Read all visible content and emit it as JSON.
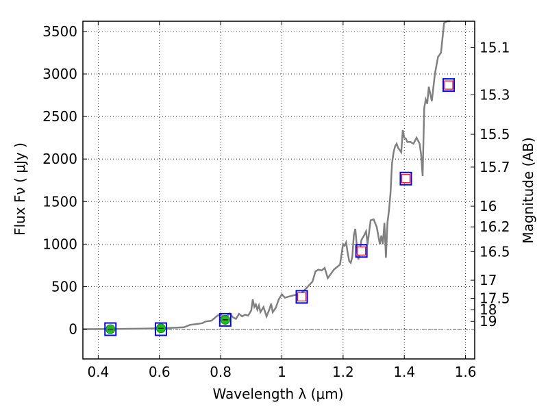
{
  "chart_data": {
    "type": "scatter",
    "xlabel": "Wavelength  λ (μm)",
    "ylabel": "Flux  Fν  ( μJy )",
    "y2label": "Magnitude (AB)",
    "xlim": [
      0.35,
      1.63
    ],
    "ylim": [
      -350,
      3620
    ],
    "grid": true,
    "grid_style": "dotted",
    "x_ticks": [
      0.4,
      0.6,
      0.8,
      1.0,
      1.2,
      1.4,
      1.6
    ],
    "x_tick_labels": [
      "0.4",
      "0.6",
      "0.8",
      "1",
      "1.2",
      "1.4",
      "1.6"
    ],
    "y_ticks": [
      0,
      500,
      1000,
      1500,
      2000,
      2500,
      3000,
      3500
    ],
    "y_tick_labels": [
      "0",
      "500",
      "1000",
      "1500",
      "2000",
      "2500",
      "3000",
      "3500"
    ],
    "mag_ticks": [
      15.1,
      15.3,
      15.5,
      15.7,
      16,
      16.2,
      16.5,
      17,
      17.5,
      18,
      19
    ],
    "mag_tick_labels": [
      "15.1",
      "15.3",
      "15.5",
      "15.7",
      "16",
      "16.2",
      "16.5",
      "17",
      "17.5",
      "18",
      "19"
    ],
    "colors": {
      "spectrum": "#808080",
      "blue_box": "#0000ff",
      "red_box": "#ff0000",
      "green_point": "#22bb22",
      "zero_line": "#555555"
    },
    "series": [
      {
        "type": "line",
        "x": [
          0.35,
          0.45,
          0.55,
          0.62,
          0.68,
          0.7,
          0.72,
          0.74,
          0.75,
          0.77,
          0.78,
          0.79,
          0.8,
          0.81,
          0.82,
          0.83,
          0.84,
          0.85,
          0.86,
          0.87,
          0.88,
          0.89,
          0.9,
          0.905,
          0.91,
          0.915,
          0.92,
          0.925,
          0.93,
          0.94,
          0.95,
          0.96,
          0.965,
          0.97,
          0.98,
          0.99,
          1.0,
          1.01,
          1.02,
          1.04,
          1.06,
          1.08,
          1.1,
          1.11,
          1.12,
          1.13,
          1.14,
          1.15,
          1.16,
          1.17,
          1.18,
          1.19,
          1.2,
          1.205,
          1.21,
          1.215,
          1.22,
          1.225,
          1.23,
          1.235,
          1.24,
          1.245,
          1.25,
          1.26,
          1.27,
          1.275,
          1.28,
          1.29,
          1.3,
          1.31,
          1.32,
          1.325,
          1.33,
          1.335,
          1.34,
          1.345,
          1.35,
          1.355,
          1.36,
          1.365,
          1.37,
          1.375,
          1.38,
          1.39,
          1.395,
          1.4,
          1.405,
          1.41,
          1.42,
          1.43,
          1.44,
          1.45,
          1.455,
          1.46,
          1.465,
          1.47,
          1.475,
          1.48,
          1.49,
          1.5,
          1.51,
          1.52,
          1.53,
          1.54,
          1.55
        ],
        "y": [
          0,
          2,
          6,
          12,
          22,
          50,
          60,
          70,
          90,
          100,
          130,
          160,
          170,
          140,
          155,
          185,
          140,
          120,
          180,
          150,
          170,
          160,
          220,
          350,
          260,
          290,
          230,
          280,
          200,
          260,
          150,
          240,
          300,
          200,
          250,
          350,
          410,
          370,
          380,
          400,
          410,
          480,
          560,
          680,
          700,
          690,
          720,
          600,
          650,
          700,
          730,
          760,
          1000,
          980,
          1020,
          900,
          800,
          780,
          850,
          1100,
          1180,
          970,
          820,
          1050,
          1110,
          1150,
          1000,
          1280,
          1290,
          1200,
          1000,
          1100,
          1000,
          1250,
          840,
          1250,
          1400,
          1600,
          1950,
          2080,
          2150,
          2180,
          2130,
          2080,
          2340,
          2250,
          2240,
          2200,
          2200,
          2180,
          2250,
          2180,
          2050,
          1800,
          2600,
          2700,
          2650,
          2850,
          2680,
          3000,
          3200,
          3250,
          3600,
          3800,
          4200
        ]
      },
      {
        "type": "scatter",
        "marker": "open-square",
        "name_hidden": true,
        "x": [
          0.44,
          0.605,
          0.815,
          1.065,
          1.26,
          1.405,
          1.545
        ],
        "y": [
          0,
          0,
          110,
          380,
          920,
          1770,
          2870
        ]
      },
      {
        "type": "scatter",
        "marker": "filled-circle",
        "name_hidden": true,
        "x": [
          0.44,
          0.605,
          0.815
        ],
        "y": [
          0,
          10,
          110
        ]
      },
      {
        "type": "scatter",
        "marker": "small-red-square",
        "name_hidden": true,
        "x": [
          1.065,
          1.26,
          1.405,
          1.545
        ],
        "y": [
          380,
          920,
          1770,
          2870
        ]
      }
    ]
  }
}
